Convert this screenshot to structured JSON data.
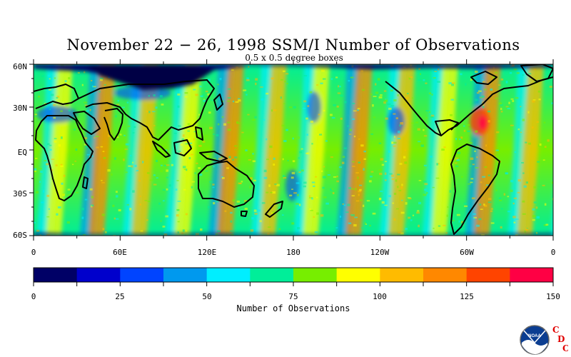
{
  "header": {
    "title": "November 22 − 26, 1998 SSM/I Number of Observations",
    "subtitle": "0.5 x 0.5 degree boxes"
  },
  "map": {
    "lat_labels": [
      "60N",
      "30N",
      "EQ",
      "30S",
      "60S"
    ],
    "lon_labels": [
      "0",
      "60E",
      "120E",
      "180",
      "120W",
      "60W",
      "0"
    ]
  },
  "colorbar": {
    "title": "Number of Observations",
    "tick_labels": [
      "0",
      "25",
      "50",
      "75",
      "100",
      "125",
      "150"
    ],
    "colors": [
      "#000066",
      "#0000cc",
      "#0044ff",
      "#0099ee",
      "#00eeff",
      "#00ee99",
      "#77ee00",
      "#ffff00",
      "#ffbb00",
      "#ff8800",
      "#ff4400",
      "#ff0044"
    ]
  },
  "logo": {
    "noaa_text": "NOAA",
    "cdc_letters": [
      "C",
      "D",
      "C"
    ]
  }
}
